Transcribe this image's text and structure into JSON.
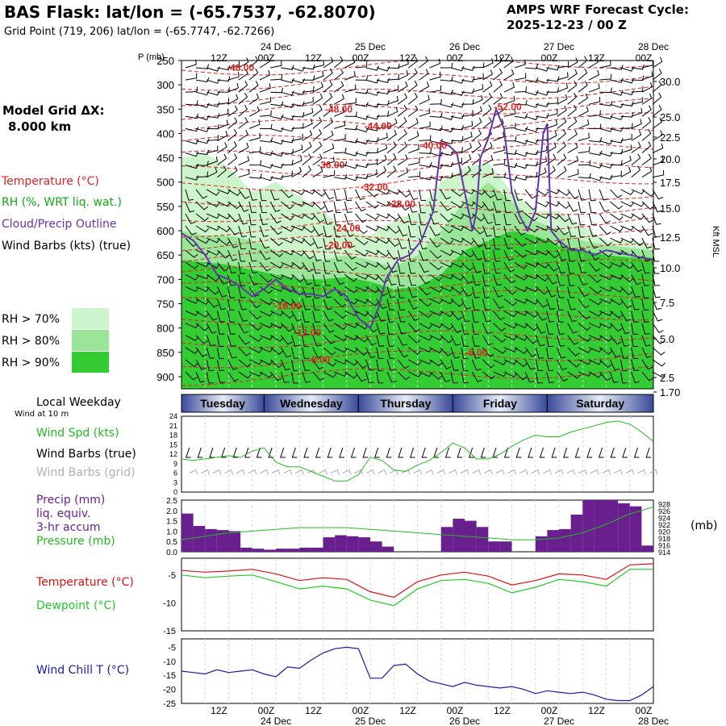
{
  "header": {
    "title": "BAS Flask:  lat/lon = (-65.7537, -62.8070)",
    "grid_point": "Grid Point (719, 206) lat/lon = (-65.7747, -62.7266)",
    "cycle_line1": "AMPS WRF Forecast Cycle:",
    "cycle_line2": "2025-12-23 / 00  Z"
  },
  "model_grid": {
    "label": "Model Grid ΔX:",
    "value": "8.000 km"
  },
  "legend": {
    "temperature": {
      "text": "Temperature (°C)",
      "color": "#dd2222"
    },
    "rh": {
      "text": "RH (%, WRT liq. wat.)",
      "color": "#11aa11"
    },
    "cloud": {
      "text": "Cloud/Precip Outline",
      "color": "#6633aa"
    },
    "wind": {
      "text": "Wind Barbs (kts) (true)",
      "color": "#000000"
    },
    "rh_levels": [
      {
        "text": "RH > 70%",
        "color": "#ccf5cc"
      },
      {
        "text": "RH > 80%",
        "color": "#99e699"
      },
      {
        "text": "RH > 90%",
        "color": "#33cc33"
      }
    ]
  },
  "axes": {
    "p_label": "P (mb)",
    "kft_label": "Kft MSL",
    "time_ticks": [
      "12Z",
      "00Z",
      "12Z",
      "00Z",
      "12Z",
      "00Z",
      "12Z",
      "00Z",
      "12Z",
      "00Z"
    ],
    "dates": [
      "24 Dec",
      "25 Dec",
      "26 Dec",
      "27 Dec",
      "28 Dec"
    ],
    "pressure_ticks": [
      "250",
      "300",
      "350",
      "400",
      "450",
      "500",
      "550",
      "600",
      "650",
      "700",
      "750",
      "800",
      "850",
      "900"
    ],
    "height_ticks": [
      "30.0",
      "25.0",
      "22.5",
      "20.0",
      "17.5",
      "15.0",
      "12.5",
      "10.0",
      "7.5",
      "5.0",
      "2.5",
      "1.70"
    ]
  },
  "weekday": {
    "title": "Local Weekday",
    "subtitle": "Wind at 10 m",
    "days": [
      "Tuesday",
      "Wednesday",
      "Thursday",
      "Friday",
      "Saturday"
    ]
  },
  "panels": {
    "wind": {
      "spd_label": "Wind Spd (kts)",
      "barb_true_label": "Wind Barbs (true)",
      "barb_grid_label": "Wind Barbs (grid)",
      "spd_color": "#22bb22",
      "grid_color": "#b0b0b0",
      "y_ticks": [
        "24",
        "21",
        "18",
        "15",
        "12",
        "9",
        "6",
        "3",
        "0"
      ]
    },
    "precip": {
      "label1": "Precip (mm)",
      "label2": "liq. equiv.",
      "label3": "3-hr accum",
      "pressure_label": "Pressure (mb)",
      "mb_label": "(mb)",
      "precip_color": "#6a1f8f",
      "pressure_color": "#22bb22",
      "y_ticks": [
        "2.5",
        "2.0",
        "1.5",
        "1.0",
        "0.5",
        "0.0"
      ],
      "y2_ticks": [
        "928",
        "926",
        "924",
        "922",
        "920",
        "918",
        "916",
        "914"
      ]
    },
    "temp": {
      "temp_label": "Temperature (°C)",
      "dew_label": "Dewpoint (°C)",
      "temp_color": "#dd1111",
      "dew_color": "#22cc22",
      "y_ticks": [
        "-5",
        "-10",
        "-15"
      ]
    },
    "chill": {
      "label": "Wind Chill T (°C)",
      "color": "#1a1aaa",
      "y_ticks": [
        "-5",
        "-10",
        "-15",
        "-20",
        "-25"
      ]
    }
  },
  "chart_data": [
    {
      "type": "area",
      "panel": "cross-section",
      "xlabel": "",
      "ylabel": "P (mb)",
      "x_hours": [
        0,
        120
      ],
      "ylim": [
        250,
        925
      ],
      "temperature_contours": [
        {
          "label": "-48.00",
          "hour": 15,
          "p": 265
        },
        {
          "label": "-48.00",
          "hour": 40,
          "p": 350
        },
        {
          "label": "-52.00",
          "hour": 83,
          "p": 345
        },
        {
          "label": "-44.00",
          "hour": 50,
          "p": 385
        },
        {
          "label": "-40.00",
          "hour": 64,
          "p": 425
        },
        {
          "label": "-36.00",
          "hour": 38,
          "p": 465
        },
        {
          "label": "-32.00",
          "hour": 49,
          "p": 510
        },
        {
          "label": "-28.00",
          "hour": 56,
          "p": 545
        },
        {
          "label": "-24.00",
          "hour": 42,
          "p": 595
        },
        {
          "label": "-20.00",
          "hour": 40,
          "p": 630
        },
        {
          "label": "-16.00",
          "hour": 27,
          "p": 755
        },
        {
          "label": "-12.00",
          "hour": 32,
          "p": 810
        },
        {
          "label": "-8.00",
          "hour": 35,
          "p": 865
        },
        {
          "label": "-8.00",
          "hour": 75,
          "p": 850
        }
      ],
      "rh90_base_pressure": [
        [
          0,
          660
        ],
        [
          6,
          665
        ],
        [
          12,
          670
        ],
        [
          18,
          680
        ],
        [
          24,
          690
        ],
        [
          30,
          700
        ],
        [
          36,
          700
        ],
        [
          42,
          695
        ],
        [
          48,
          705
        ],
        [
          54,
          720
        ],
        [
          60,
          715
        ],
        [
          66,
          690
        ],
        [
          72,
          640
        ],
        [
          78,
          620
        ],
        [
          84,
          600
        ],
        [
          90,
          610
        ],
        [
          96,
          630
        ],
        [
          102,
          640
        ],
        [
          108,
          650
        ],
        [
          114,
          655
        ],
        [
          120,
          655
        ]
      ],
      "rh80_base_pressure": [
        [
          0,
          600
        ],
        [
          6,
          610
        ],
        [
          12,
          610
        ],
        [
          18,
          620
        ],
        [
          24,
          640
        ],
        [
          30,
          650
        ],
        [
          36,
          660
        ],
        [
          42,
          650
        ],
        [
          48,
          660
        ],
        [
          54,
          675
        ],
        [
          60,
          650
        ],
        [
          66,
          600
        ],
        [
          72,
          540
        ],
        [
          78,
          500
        ],
        [
          84,
          540
        ],
        [
          90,
          580
        ],
        [
          96,
          600
        ],
        [
          102,
          620
        ],
        [
          108,
          630
        ],
        [
          114,
          635
        ],
        [
          120,
          640
        ]
      ],
      "rh70_base_pressure": [
        [
          0,
          450
        ],
        [
          6,
          440
        ],
        [
          12,
          470
        ],
        [
          18,
          520
        ],
        [
          24,
          500
        ],
        [
          30,
          530
        ],
        [
          36,
          560
        ],
        [
          42,
          600
        ],
        [
          48,
          610
        ],
        [
          54,
          580
        ],
        [
          60,
          560
        ],
        [
          66,
          500
        ],
        [
          72,
          470
        ],
        [
          78,
          460
        ],
        [
          84,
          520
        ],
        [
          90,
          560
        ],
        [
          96,
          560
        ],
        [
          102,
          590
        ],
        [
          108,
          620
        ],
        [
          114,
          620
        ],
        [
          120,
          630
        ]
      ],
      "cloud_outline": [
        [
          0,
          605
        ],
        [
          3,
          620
        ],
        [
          6,
          650
        ],
        [
          9,
          690
        ],
        [
          12,
          700
        ],
        [
          15,
          715
        ],
        [
          18,
          735
        ],
        [
          21,
          720
        ],
        [
          24,
          700
        ],
        [
          27,
          720
        ],
        [
          30,
          730
        ],
        [
          33,
          730
        ],
        [
          36,
          735
        ],
        [
          39,
          720
        ],
        [
          42,
          735
        ],
        [
          45,
          780
        ],
        [
          48,
          800
        ],
        [
          50,
          760
        ],
        [
          52,
          700
        ],
        [
          55,
          660
        ],
        [
          58,
          650
        ],
        [
          61,
          620
        ],
        [
          64,
          560
        ],
        [
          66,
          420
        ],
        [
          68,
          425
        ],
        [
          70,
          440
        ],
        [
          72,
          520
        ],
        [
          74,
          600
        ],
        [
          75,
          560
        ],
        [
          76,
          450
        ],
        [
          78,
          410
        ],
        [
          80,
          350
        ],
        [
          82,
          390
        ],
        [
          84,
          520
        ],
        [
          86,
          570
        ],
        [
          88,
          600
        ],
        [
          90,
          560
        ],
        [
          92,
          400
        ],
        [
          93,
          380
        ],
        [
          94,
          600
        ],
        [
          96,
          620
        ],
        [
          99,
          640
        ],
        [
          102,
          640
        ],
        [
          105,
          650
        ],
        [
          108,
          640
        ],
        [
          111,
          645
        ],
        [
          114,
          650
        ],
        [
          117,
          655
        ],
        [
          120,
          660
        ]
      ]
    },
    {
      "type": "line",
      "panel": "wind-speed",
      "ylabel": "Wind Spd (kts)",
      "ylim": [
        0,
        24
      ],
      "series": [
        {
          "name": "Wind Spd (kts)",
          "x": [
            0,
            3,
            6,
            9,
            12,
            15,
            18,
            21,
            24,
            27,
            30,
            33,
            36,
            39,
            42,
            45,
            48,
            51,
            54,
            57,
            60,
            63,
            66,
            69,
            72,
            75,
            78,
            81,
            84,
            87,
            90,
            93,
            96,
            99,
            102,
            105,
            108,
            111,
            114,
            117,
            120
          ],
          "y": [
            10.5,
            10,
            10.5,
            11,
            11.5,
            11,
            13,
            14,
            9.5,
            8,
            8,
            6.5,
            5,
            3.5,
            3.5,
            5.5,
            11,
            10,
            7,
            6.5,
            8.5,
            10,
            12.5,
            15.5,
            14,
            10.5,
            10.5,
            12,
            14.5,
            16.5,
            18,
            17.5,
            17.5,
            19,
            20,
            21,
            22,
            22.5,
            21.5,
            19,
            16
          ]
        }
      ]
    },
    {
      "type": "bar",
      "panel": "precip",
      "ylabel": "Precip (mm)",
      "ylim": [
        0,
        2.5
      ],
      "series": [
        {
          "name": "Precip (mm)",
          "x": [
            0,
            3,
            6,
            9,
            12,
            15,
            18,
            21,
            24,
            27,
            30,
            33,
            36,
            39,
            42,
            45,
            48,
            51,
            54,
            57,
            60,
            63,
            66,
            69,
            72,
            75,
            78,
            81,
            84,
            87,
            90,
            93,
            96,
            99,
            102,
            105,
            108,
            111,
            114,
            117
          ],
          "values": [
            1.85,
            1.25,
            1.1,
            1.05,
            1.0,
            0.2,
            0.15,
            0.1,
            0.15,
            0.15,
            0.2,
            0.2,
            0.7,
            0.8,
            0.75,
            0.7,
            0.5,
            0.25,
            0.0,
            0.0,
            0.0,
            0.0,
            1.2,
            1.6,
            1.5,
            1.2,
            0.5,
            0.5,
            0.0,
            0.0,
            0.75,
            1.05,
            1.1,
            1.8,
            2.5,
            2.5,
            2.5,
            2.35,
            2.2,
            0.3
          ]
        }
      ]
    },
    {
      "type": "line",
      "panel": "pressure",
      "ylabel": "Pressure (mb)",
      "ylim": [
        914,
        929
      ],
      "series": [
        {
          "name": "Pressure (mb)",
          "x": [
            0,
            6,
            12,
            18,
            24,
            30,
            36,
            42,
            48,
            54,
            60,
            66,
            72,
            78,
            84,
            90,
            96,
            102,
            108,
            114,
            120
          ],
          "y": [
            917.5,
            918.5,
            919.5,
            920.0,
            920.5,
            921.0,
            921.0,
            921.0,
            920.5,
            920.0,
            919.5,
            919.0,
            918.5,
            918.0,
            917.5,
            917.5,
            918.0,
            919.5,
            922.0,
            925.0,
            927.0
          ]
        }
      ]
    },
    {
      "type": "line",
      "panel": "temperature",
      "ylim": [
        -15,
        -2
      ],
      "series": [
        {
          "name": "Temperature (°C)",
          "x": [
            0,
            6,
            12,
            18,
            24,
            30,
            36,
            42,
            48,
            54,
            60,
            66,
            72,
            78,
            84,
            90,
            96,
            102,
            108,
            114,
            120
          ],
          "y": [
            -4.2,
            -4.5,
            -4.3,
            -4.0,
            -4.8,
            -6.0,
            -5.5,
            -5.8,
            -8.0,
            -9.0,
            -6.2,
            -5.0,
            -4.5,
            -5.2,
            -6.8,
            -6.0,
            -4.8,
            -5.0,
            -5.8,
            -3.2,
            -3.0
          ]
        },
        {
          "name": "Dewpoint (°C)",
          "x": [
            0,
            6,
            12,
            18,
            24,
            30,
            36,
            42,
            48,
            54,
            60,
            66,
            72,
            78,
            84,
            90,
            96,
            102,
            108,
            114,
            120
          ],
          "y": [
            -5.0,
            -5.5,
            -5.2,
            -5.0,
            -6.2,
            -7.5,
            -7.0,
            -7.5,
            -9.5,
            -10.5,
            -7.5,
            -6.0,
            -5.8,
            -6.5,
            -8.2,
            -7.2,
            -5.8,
            -6.2,
            -7.0,
            -4.0,
            -4.0
          ]
        }
      ]
    },
    {
      "type": "line",
      "panel": "wind-chill",
      "ylabel": "Wind Chill T (°C)",
      "ylim": [
        -25,
        -2
      ],
      "series": [
        {
          "name": "Wind Chill T (°C)",
          "x": [
            0,
            3,
            6,
            9,
            12,
            15,
            18,
            21,
            24,
            27,
            30,
            33,
            36,
            39,
            42,
            45,
            48,
            51,
            54,
            57,
            60,
            63,
            66,
            69,
            72,
            75,
            78,
            81,
            84,
            87,
            90,
            93,
            96,
            99,
            102,
            105,
            108,
            111,
            114,
            117,
            120
          ],
          "y": [
            -13.5,
            -14,
            -14.5,
            -13,
            -14,
            -13.5,
            -13,
            -14.5,
            -15.5,
            -12,
            -12.5,
            -9.5,
            -7,
            -5.5,
            -5,
            -5.5,
            -16,
            -16,
            -11.5,
            -11,
            -14.5,
            -17,
            -18,
            -19,
            -17.5,
            -18.5,
            -19,
            -19.5,
            -19,
            -20,
            -21.5,
            -20.5,
            -21,
            -21.5,
            -21,
            -22,
            -23.5,
            -24,
            -24,
            -22,
            -19
          ]
        }
      ]
    }
  ]
}
